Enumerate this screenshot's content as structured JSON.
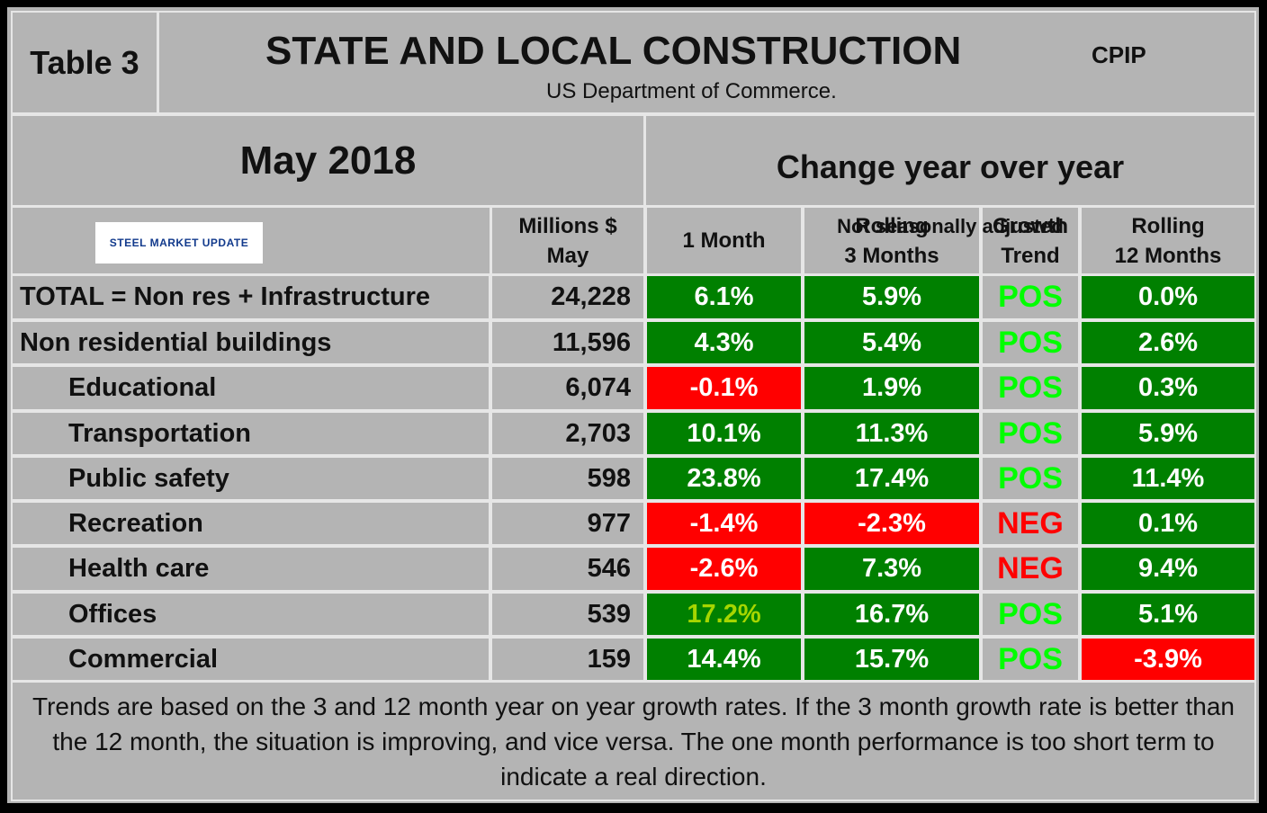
{
  "header": {
    "table_label": "Table 3",
    "title": "STATE AND LOCAL CONSTRUCTION",
    "title_tag": "CPIP",
    "source": "US Department of Commerce."
  },
  "period": "May 2018",
  "change": {
    "title": "Change year over year",
    "note": "Not seasonally adjusted"
  },
  "logo": "STEEL MARKET UPDATE",
  "columns": [
    "Millions $\nMay",
    "1 Month",
    "Rolling\n3 Months",
    "Growth\nTrend",
    "Rolling\n12 Months"
  ],
  "rows": [
    [
      "TOTAL = Non res + Infrastructure",
      "24,228",
      "6.1%",
      "5.9%",
      "POS",
      "0.0%"
    ],
    [
      "Non residential buildings",
      "11,596",
      "4.3%",
      "5.4%",
      "POS",
      "2.6%"
    ],
    [
      "Educational",
      "6,074",
      "-0.1%",
      "1.9%",
      "POS",
      "0.3%"
    ],
    [
      "Transportation",
      "2,703",
      "10.1%",
      "11.3%",
      "POS",
      "5.9%"
    ],
    [
      "Public safety",
      "598",
      "23.8%",
      "17.4%",
      "POS",
      "11.4%"
    ],
    [
      "Recreation",
      "977",
      "-1.4%",
      "-2.3%",
      "NEG",
      "0.1%"
    ],
    [
      "Health care",
      "546",
      "-2.6%",
      "7.3%",
      "NEG",
      "9.4%"
    ],
    [
      "Offices",
      "539",
      "17.2%",
      "16.7%",
      "POS",
      "5.1%"
    ],
    [
      "Commercial",
      "159",
      "14.4%",
      "15.7%",
      "POS",
      "-3.9%"
    ]
  ],
  "footnote": "Trends are based on the 3 and 12 month year on year growth rates. If the 3 month growth rate is better than the 12 month, the situation is improving, and vice versa. The one month performance is too short term to indicate a real direction."
}
